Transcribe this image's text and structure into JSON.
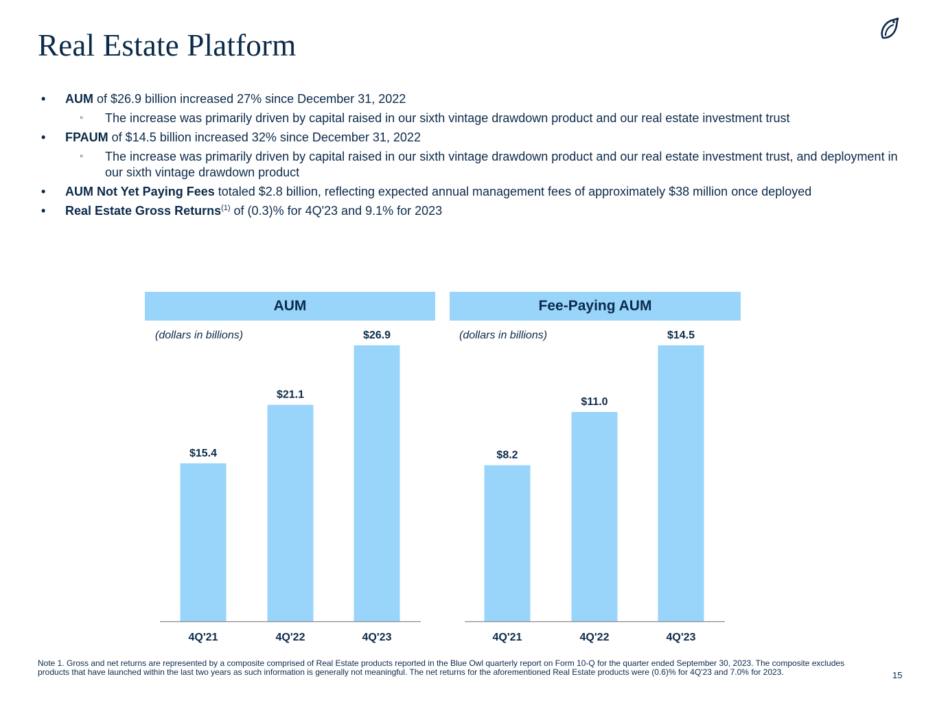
{
  "title": "Real Estate Platform",
  "bullets": {
    "aum_label": "AUM",
    "aum_text": " of $26.9 billion increased 27% since December 31, 2022",
    "aum_sub": "The increase was primarily driven by capital raised in our sixth vintage drawdown product and our real estate investment trust",
    "fpaum_label": "FPAUM",
    "fpaum_text": " of $14.5 billion increased 32% since December 31, 2022",
    "fpaum_sub": "The increase was primarily driven by capital raised in our sixth vintage drawdown product and our real estate investment trust, and deployment in our sixth vintage drawdown product",
    "nypf_label": "AUM Not Yet Paying Fees",
    "nypf_text": " totaled $2.8 billion, reflecting expected annual management fees of approximately $38 million once deployed",
    "returns_label": "Real Estate Gross Returns",
    "returns_sup": "(1)",
    "returns_text": " of (0.3)% for 4Q'23 and 9.1% for 2023"
  },
  "bullet_symbol": "•",
  "sub_bullet_symbol": "◦",
  "colors": {
    "bar": "#99d5fb",
    "header_bg": "#99d5fb",
    "text": "#0b2a4a",
    "axis": "#8a8a8a"
  },
  "chart_data": [
    {
      "type": "bar",
      "title": "AUM",
      "subtitle": "(dollars in billions)",
      "categories": [
        "4Q'21",
        "4Q'22",
        "4Q'23"
      ],
      "values": [
        15.4,
        21.1,
        26.9
      ],
      "labels": [
        "$15.4",
        "$21.1",
        "$26.9"
      ],
      "ylim": [
        0,
        26.9
      ]
    },
    {
      "type": "bar",
      "title": "Fee-Paying AUM",
      "subtitle": "(dollars in billions)",
      "categories": [
        "4Q'21",
        "4Q'22",
        "4Q'23"
      ],
      "values": [
        8.2,
        11.0,
        14.5
      ],
      "labels": [
        "$8.2",
        "$11.0",
        "$14.5"
      ],
      "ylim": [
        0,
        14.5
      ]
    }
  ],
  "footnote": "Note 1. Gross and net returns are represented by a composite comprised of Real Estate products reported in the Blue Owl quarterly report on Form 10-Q for the quarter ended September 30, 2023. The composite excludes products that have launched within the last two years as such information is generally not meaningful. The net returns for the aforementioned Real Estate products were (0.6)% for 4Q'23 and 7.0% for 2023.",
  "page_number": "15"
}
